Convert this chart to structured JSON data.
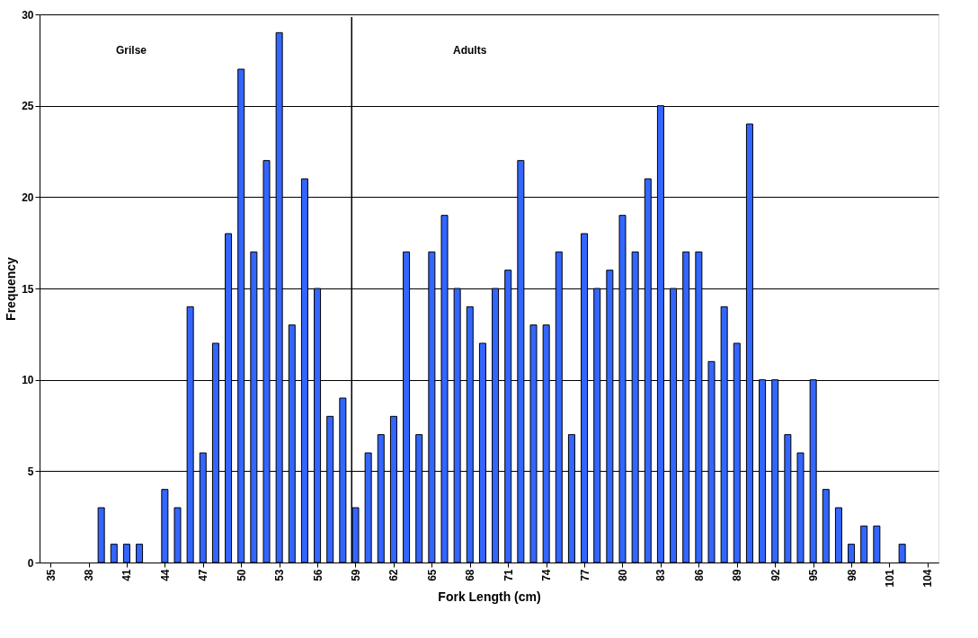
{
  "chart_data": {
    "type": "bar",
    "xlabel": "Fork Length (cm)",
    "ylabel": "Frequency",
    "x": [
      35,
      36,
      37,
      38,
      39,
      40,
      41,
      42,
      43,
      44,
      45,
      46,
      47,
      48,
      49,
      50,
      51,
      52,
      53,
      54,
      55,
      56,
      57,
      58,
      59,
      60,
      61,
      62,
      63,
      64,
      65,
      66,
      67,
      68,
      69,
      70,
      71,
      72,
      73,
      74,
      75,
      76,
      77,
      78,
      79,
      80,
      81,
      82,
      83,
      84,
      85,
      86,
      87,
      88,
      89,
      90,
      91,
      92,
      93,
      94,
      95,
      96,
      97,
      98,
      99,
      100,
      101,
      102,
      103,
      104
    ],
    "values": [
      0,
      0,
      0,
      0,
      3,
      1,
      1,
      1,
      0,
      4,
      3,
      14,
      6,
      12,
      18,
      27,
      17,
      22,
      29,
      13,
      21,
      15,
      8,
      9,
      3,
      6,
      7,
      8,
      17,
      7,
      17,
      19,
      15,
      14,
      12,
      15,
      16,
      22,
      13,
      13,
      17,
      7,
      18,
      15,
      16,
      19,
      17,
      21,
      25,
      15,
      17,
      17,
      11,
      14,
      12,
      24,
      10,
      10,
      7,
      6,
      10,
      4,
      3,
      1,
      2,
      2,
      0,
      1,
      0,
      0
    ],
    "color": "#3366ff",
    "xlim": [
      34.5,
      104.5
    ],
    "xticks": [
      35,
      38,
      41,
      44,
      47,
      50,
      53,
      56,
      59,
      62,
      65,
      68,
      71,
      74,
      77,
      80,
      83,
      86,
      89,
      92,
      95,
      98,
      101,
      104
    ],
    "ylim": [
      0,
      30
    ],
    "yticks": [
      0,
      5,
      10,
      15,
      20,
      25,
      30
    ],
    "grid": "y",
    "ref_lines": [
      {
        "axis": "x",
        "value": 58.7,
        "color": "#000000"
      }
    ],
    "annotations": [
      "Grilse",
      "Adults"
    ]
  }
}
